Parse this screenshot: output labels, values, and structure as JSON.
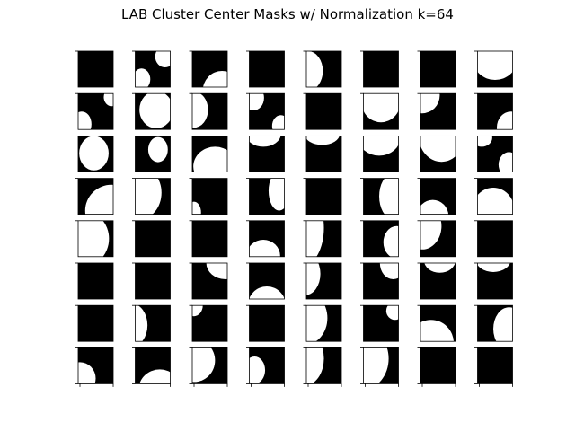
{
  "title": "LAB Cluster Center Masks w/ Normalization k=64",
  "chart_data": {
    "type": "heatmap",
    "title": "LAB Cluster Center Masks w/ Normalization k=64",
    "grid": {
      "rows": 8,
      "cols": 8
    },
    "colormap": {
      "0": "#000000",
      "1": "#ffffff"
    },
    "note_values": "each mask is a binary image; white regions given as circles/ellipses in unit coordinates of the subplot (0..1), rendered as mask value 1",
    "masks": [
      {
        "row": 0,
        "col": 0,
        "blobs": []
      },
      {
        "row": 0,
        "col": 1,
        "blobs": [
          [
            0.85,
            0.15,
            0.28,
            0.3
          ],
          [
            0.18,
            0.78,
            0.25,
            0.3
          ]
        ]
      },
      {
        "row": 0,
        "col": 2,
        "blobs": [
          [
            0.85,
            1.1,
            0.55,
            0.55
          ]
        ]
      },
      {
        "row": 0,
        "col": 3,
        "blobs": []
      },
      {
        "row": 0,
        "col": 4,
        "blobs": [
          [
            0.05,
            0.55,
            0.42,
            0.55
          ]
        ]
      },
      {
        "row": 0,
        "col": 5,
        "blobs": []
      },
      {
        "row": 0,
        "col": 6,
        "blobs": []
      },
      {
        "row": 0,
        "col": 7,
        "blobs": [
          [
            0.5,
            0.25,
            0.62,
            0.55
          ]
        ]
      },
      {
        "row": 1,
        "col": 0,
        "blobs": [
          [
            0.95,
            0.1,
            0.22,
            0.25
          ],
          [
            0.1,
            0.85,
            0.28,
            0.35
          ]
        ]
      },
      {
        "row": 1,
        "col": 1,
        "blobs": [
          [
            0.6,
            0.45,
            0.48,
            0.52
          ]
        ]
      },
      {
        "row": 1,
        "col": 2,
        "blobs": [
          [
            0.05,
            0.45,
            0.4,
            0.5
          ]
        ]
      },
      {
        "row": 1,
        "col": 3,
        "blobs": [
          [
            0.12,
            0.12,
            0.3,
            0.35
          ],
          [
            0.9,
            0.9,
            0.25,
            0.3
          ]
        ]
      },
      {
        "row": 1,
        "col": 4,
        "blobs": []
      },
      {
        "row": 1,
        "col": 5,
        "blobs": [
          [
            0.5,
            0.25,
            0.55,
            0.55
          ]
        ]
      },
      {
        "row": 1,
        "col": 6,
        "blobs": [
          [
            0.05,
            0.05,
            0.5,
            0.5
          ]
        ]
      },
      {
        "row": 1,
        "col": 7,
        "blobs": [
          [
            0.95,
            0.95,
            0.4,
            0.45
          ]
        ]
      },
      {
        "row": 2,
        "col": 0,
        "blobs": [
          [
            0.45,
            0.48,
            0.42,
            0.48
          ]
        ]
      },
      {
        "row": 2,
        "col": 1,
        "blobs": [
          [
            0.65,
            0.38,
            0.28,
            0.35
          ]
        ]
      },
      {
        "row": 2,
        "col": 2,
        "blobs": [
          [
            0.65,
            0.85,
            0.62,
            0.55
          ]
        ]
      },
      {
        "row": 2,
        "col": 3,
        "blobs": [
          [
            0.4,
            -0.05,
            0.5,
            0.35
          ]
        ]
      },
      {
        "row": 2,
        "col": 4,
        "blobs": [
          [
            0.45,
            -0.05,
            0.5,
            0.3
          ]
        ]
      },
      {
        "row": 2,
        "col": 5,
        "blobs": [
          [
            0.45,
            0.05,
            0.6,
            0.5
          ]
        ]
      },
      {
        "row": 2,
        "col": 6,
        "blobs": [
          [
            0.6,
            0.0,
            0.65,
            0.72
          ]
        ]
      },
      {
        "row": 2,
        "col": 7,
        "blobs": [
          [
            0.12,
            0.05,
            0.3,
            0.25
          ],
          [
            0.9,
            0.8,
            0.3,
            0.35
          ]
        ]
      },
      {
        "row": 3,
        "col": 0,
        "blobs": [
          [
            0.95,
            0.9,
            0.75,
            0.72
          ]
        ]
      },
      {
        "row": 3,
        "col": 1,
        "blobs": [
          [
            0.1,
            0.4,
            0.65,
            0.75
          ]
        ]
      },
      {
        "row": 3,
        "col": 2,
        "blobs": [
          [
            0.05,
            0.95,
            0.2,
            0.3
          ]
        ]
      },
      {
        "row": 3,
        "col": 3,
        "blobs": [
          [
            0.85,
            0.35,
            0.3,
            0.55
          ]
        ]
      },
      {
        "row": 3,
        "col": 4,
        "blobs": []
      },
      {
        "row": 3,
        "col": 5,
        "blobs": [
          [
            0.8,
            0.5,
            0.35,
            0.6
          ]
        ]
      },
      {
        "row": 3,
        "col": 6,
        "blobs": [
          [
            0.35,
            1.05,
            0.45,
            0.45
          ]
        ]
      },
      {
        "row": 3,
        "col": 7,
        "blobs": [
          [
            0.45,
            0.88,
            0.6,
            0.62
          ]
        ]
      },
      {
        "row": 4,
        "col": 0,
        "blobs": [
          [
            0.1,
            0.5,
            0.78,
            0.8
          ]
        ]
      },
      {
        "row": 4,
        "col": 1,
        "blobs": []
      },
      {
        "row": 4,
        "col": 2,
        "blobs": []
      },
      {
        "row": 4,
        "col": 3,
        "blobs": [
          [
            0.4,
            0.98,
            0.48,
            0.45
          ]
        ]
      },
      {
        "row": 4,
        "col": 4,
        "blobs": [
          [
            -0.1,
            0.2,
            0.6,
            1.05
          ]
        ]
      },
      {
        "row": 4,
        "col": 5,
        "blobs": [
          [
            0.95,
            0.6,
            0.38,
            0.45
          ]
        ]
      },
      {
        "row": 4,
        "col": 6,
        "blobs": [
          [
            0.05,
            0.15,
            0.55,
            0.65
          ]
        ]
      },
      {
        "row": 4,
        "col": 7,
        "blobs": []
      },
      {
        "row": 5,
        "col": 0,
        "blobs": []
      },
      {
        "row": 5,
        "col": 1,
        "blobs": []
      },
      {
        "row": 5,
        "col": 2,
        "blobs": [
          [
            0.95,
            0.0,
            0.55,
            0.45
          ]
        ]
      },
      {
        "row": 5,
        "col": 3,
        "blobs": [
          [
            0.5,
            1.2,
            0.55,
            0.55
          ]
        ]
      },
      {
        "row": 5,
        "col": 4,
        "blobs": [
          [
            -0.05,
            0.3,
            0.45,
            0.6
          ]
        ]
      },
      {
        "row": 5,
        "col": 5,
        "blobs": [
          [
            0.85,
            0.0,
            0.38,
            0.45
          ]
        ]
      },
      {
        "row": 5,
        "col": 6,
        "blobs": [
          [
            0.55,
            -0.08,
            0.45,
            0.35
          ]
        ]
      },
      {
        "row": 5,
        "col": 7,
        "blobs": [
          [
            0.45,
            -0.1,
            0.5,
            0.35
          ]
        ]
      },
      {
        "row": 6,
        "col": 0,
        "blobs": []
      },
      {
        "row": 6,
        "col": 1,
        "blobs": [
          [
            -0.1,
            0.55,
            0.45,
            0.6
          ]
        ]
      },
      {
        "row": 6,
        "col": 2,
        "blobs": [
          [
            0.05,
            0.0,
            0.25,
            0.3
          ]
        ]
      },
      {
        "row": 6,
        "col": 3,
        "blobs": []
      },
      {
        "row": 6,
        "col": 4,
        "blobs": [
          [
            -0.05,
            0.35,
            0.65,
            0.75
          ]
        ]
      },
      {
        "row": 6,
        "col": 5,
        "blobs": [
          [
            0.9,
            0.15,
            0.25,
            0.25
          ]
        ]
      },
      {
        "row": 6,
        "col": 6,
        "blobs": [
          [
            0.3,
            1.05,
            0.65,
            0.65
          ]
        ]
      },
      {
        "row": 6,
        "col": 7,
        "blobs": [
          [
            0.9,
            0.65,
            0.45,
            0.6
          ]
        ]
      },
      {
        "row": 7,
        "col": 0,
        "blobs": [
          [
            0.05,
            0.85,
            0.45,
            0.45
          ]
        ]
      },
      {
        "row": 7,
        "col": 1,
        "blobs": [
          [
            0.7,
            1.15,
            0.6,
            0.55
          ]
        ]
      },
      {
        "row": 7,
        "col": 2,
        "blobs": [
          [
            0.05,
            0.35,
            0.6,
            0.6
          ]
        ]
      },
      {
        "row": 7,
        "col": 3,
        "blobs": [
          [
            0.15,
            0.62,
            0.3,
            0.38
          ]
        ]
      },
      {
        "row": 7,
        "col": 4,
        "blobs": [
          [
            -0.05,
            0.3,
            0.55,
            0.75
          ]
        ]
      },
      {
        "row": 7,
        "col": 5,
        "blobs": [
          [
            0.0,
            0.3,
            0.72,
            0.85
          ]
        ]
      },
      {
        "row": 7,
        "col": 6,
        "blobs": []
      },
      {
        "row": 7,
        "col": 7,
        "blobs": []
      }
    ],
    "xlabel": "",
    "ylabel": ""
  }
}
